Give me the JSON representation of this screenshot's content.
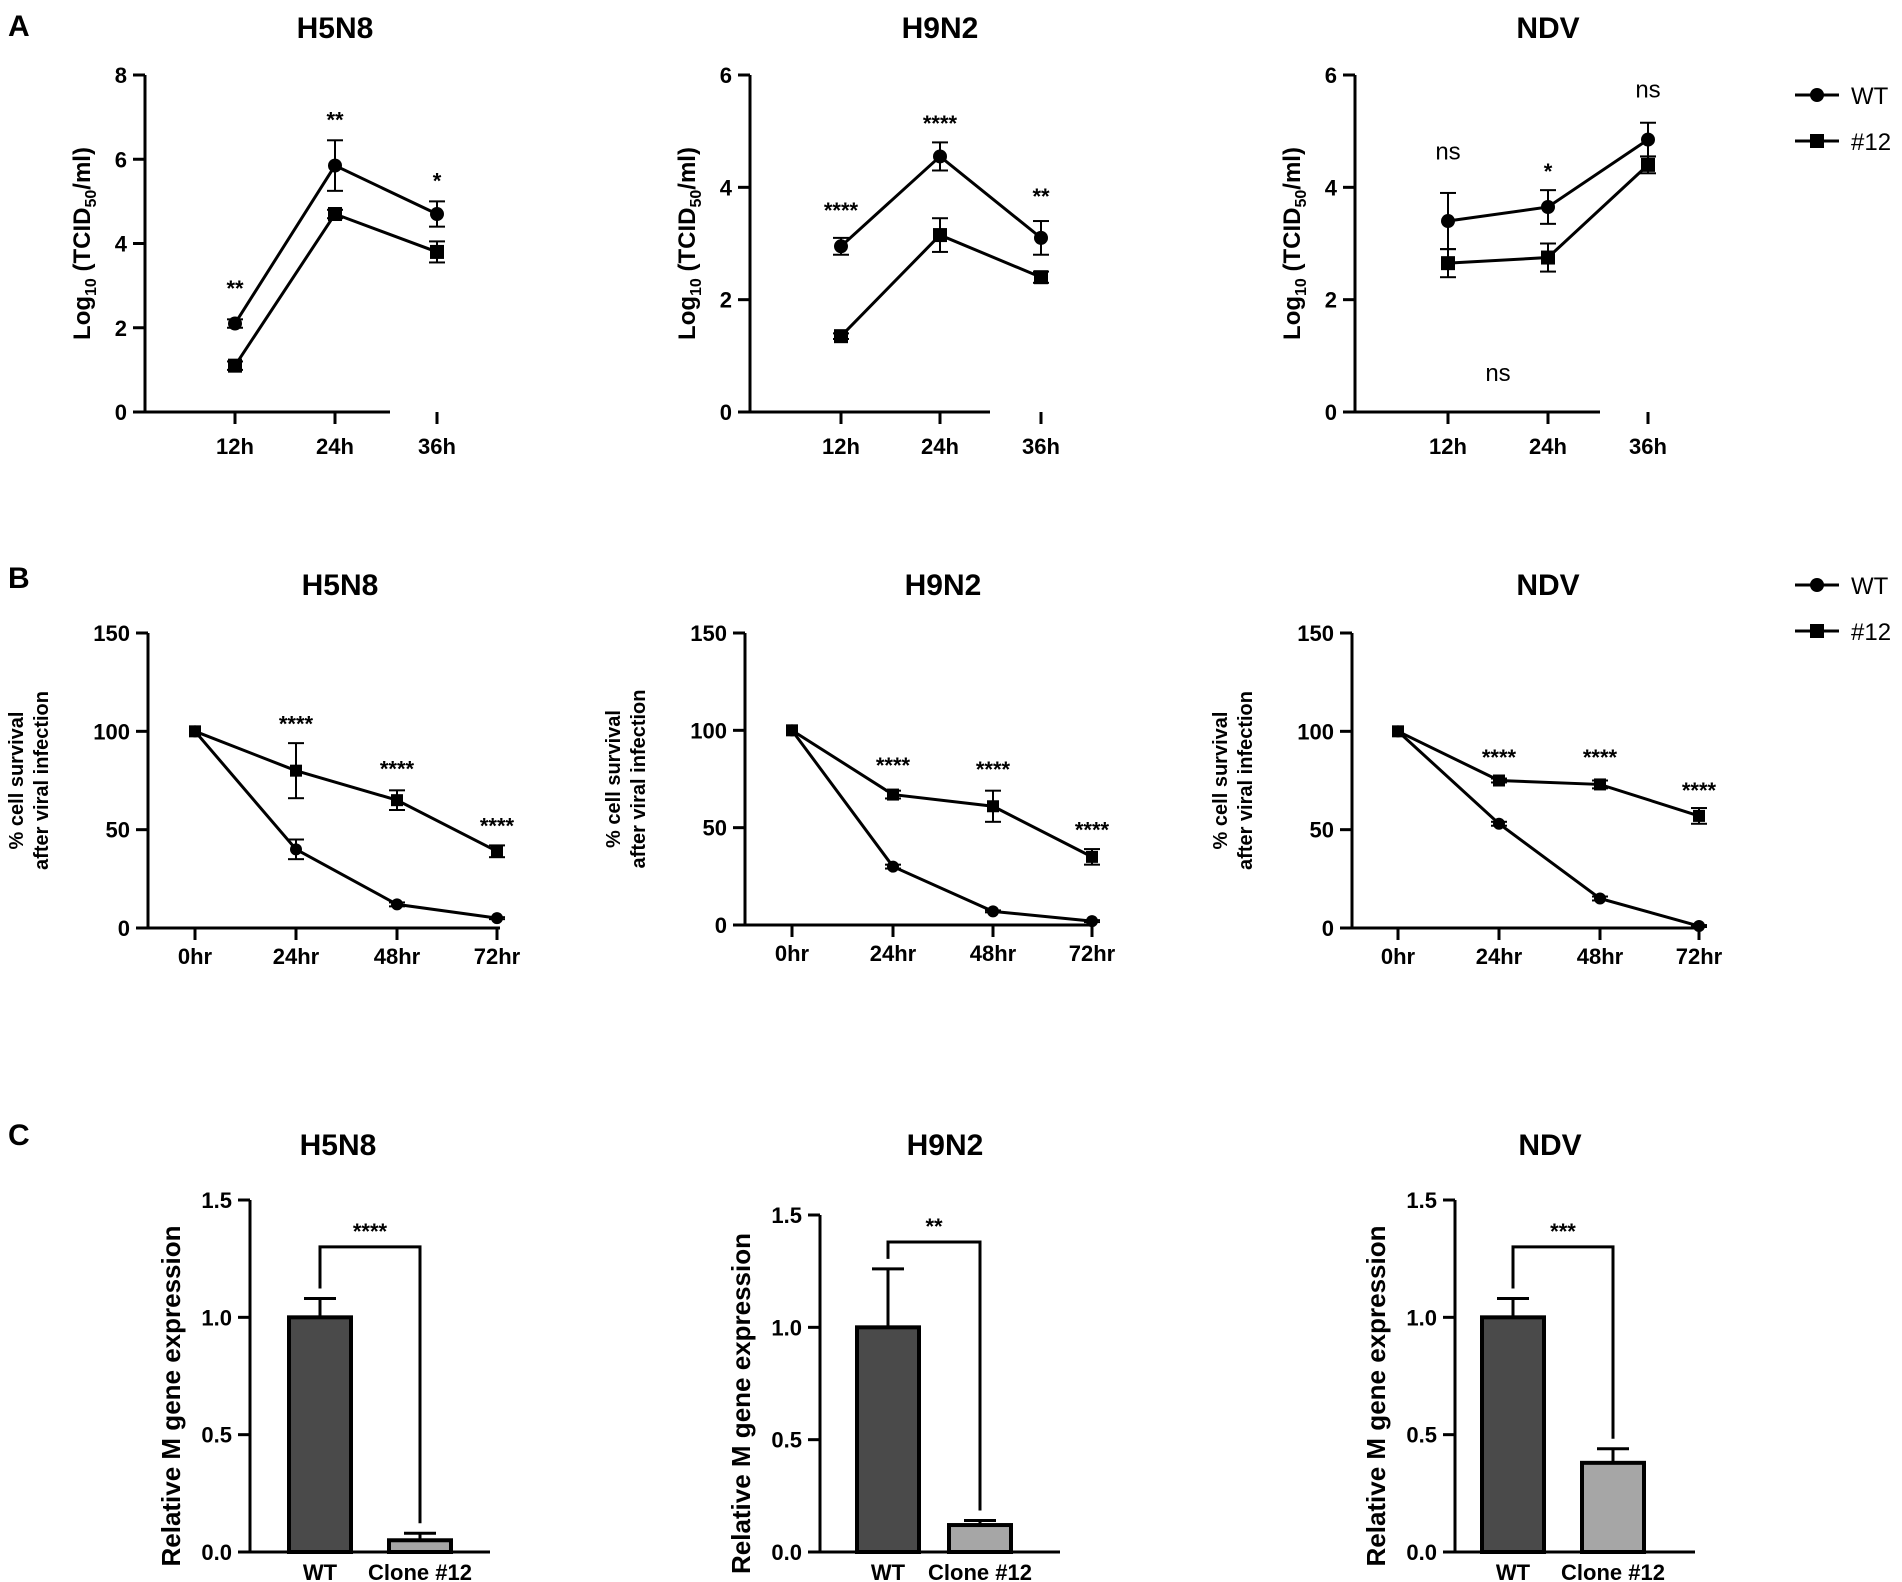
{
  "panel_letters": {
    "a": "A",
    "b": "B",
    "c": "C"
  },
  "legend": [
    {
      "name": "WT",
      "marker": "circle"
    },
    {
      "name": "#12",
      "marker": "square"
    }
  ],
  "chart_data": [
    {
      "panel": "A",
      "type": "line",
      "title": "H5N8",
      "ylabel": {
        "base": "Log",
        "sub1": "10",
        "mid": " (TCID",
        "sub2": "50",
        "end": "/ml)"
      },
      "categories": [
        "12h",
        "24h",
        "36h"
      ],
      "ylim": [
        0,
        8
      ],
      "yticks": [
        0,
        2,
        4,
        6,
        8
      ],
      "series": [
        {
          "name": "WT",
          "marker": "circle",
          "values": [
            2.1,
            5.85,
            4.7
          ],
          "errors": [
            0.1,
            0.6,
            0.3
          ]
        },
        {
          "name": "#12",
          "marker": "square",
          "values": [
            1.1,
            4.7,
            3.8
          ],
          "errors": [
            0.1,
            0.1,
            0.25
          ]
        }
      ],
      "annotations": [
        {
          "category": "12h",
          "text": "**",
          "y": 2.75,
          "style": "sig"
        },
        {
          "category": "24h",
          "text": "**",
          "y": 6.75,
          "style": "sig"
        },
        {
          "category": "36h",
          "text": "*",
          "y": 5.3,
          "style": "sig"
        }
      ]
    },
    {
      "panel": "A",
      "type": "line",
      "title": "H9N2",
      "ylabel": {
        "base": "Log",
        "sub1": "10",
        "mid": " (TCID",
        "sub2": "50",
        "end": "/ml)"
      },
      "categories": [
        "12h",
        "24h",
        "36h"
      ],
      "ylim": [
        0,
        6
      ],
      "yticks": [
        0,
        2,
        4,
        6
      ],
      "series": [
        {
          "name": "WT",
          "marker": "circle",
          "values": [
            2.95,
            4.55,
            3.1
          ],
          "errors": [
            0.15,
            0.25,
            0.3
          ]
        },
        {
          "name": "#12",
          "marker": "square",
          "values": [
            1.35,
            3.15,
            2.4
          ],
          "errors": [
            0.05,
            0.3,
            0.1
          ]
        }
      ],
      "annotations": [
        {
          "category": "12h",
          "text": "****",
          "y": 3.45,
          "style": "sig"
        },
        {
          "category": "24h",
          "text": "****",
          "y": 5.0,
          "style": "sig"
        },
        {
          "category": "36h",
          "text": "**",
          "y": 3.7,
          "style": "sig"
        }
      ]
    },
    {
      "panel": "A",
      "type": "line",
      "title": "NDV",
      "ylabel": {
        "base": "Log",
        "sub1": "10",
        "mid": " (TCID",
        "sub2": "50",
        "end": "/ml)"
      },
      "categories": [
        "12h",
        "24h",
        "36h"
      ],
      "ylim": [
        0,
        6
      ],
      "yticks": [
        0,
        2,
        4,
        6
      ],
      "series": [
        {
          "name": "WT",
          "marker": "circle",
          "values": [
            3.4,
            3.65,
            4.85
          ],
          "errors": [
            0.5,
            0.3,
            0.3
          ]
        },
        {
          "name": "#12",
          "marker": "square",
          "values": [
            2.65,
            2.75,
            4.4
          ],
          "errors": [
            0.25,
            0.25,
            0.15
          ]
        }
      ],
      "annotations": [
        {
          "category": "12h",
          "text": "ns",
          "y": 4.5,
          "style": "ns"
        },
        {
          "category": "24h",
          "text": "*",
          "y": 4.15,
          "style": "sig"
        },
        {
          "category": "36h",
          "text": "ns",
          "y": 5.6,
          "style": "ns"
        },
        {
          "category": "24h",
          "text": "ns",
          "y": 0.55,
          "style": "ns",
          "dx": -0.5
        }
      ]
    },
    {
      "panel": "B",
      "type": "line",
      "title": "H5N8",
      "ylabel": {
        "line1": "% cell survival",
        "line2": "after viral infection"
      },
      "categories": [
        "0hr",
        "24hr",
        "48hr",
        "72hr"
      ],
      "ylim": [
        0,
        150
      ],
      "yticks": [
        0,
        50,
        100,
        150
      ],
      "series": [
        {
          "name": "WT",
          "marker": "circle",
          "values": [
            100,
            40,
            12,
            5
          ],
          "errors": [
            0,
            5,
            1,
            0.5
          ]
        },
        {
          "name": "#12",
          "marker": "square",
          "values": [
            100,
            80,
            65,
            39
          ],
          "errors": [
            0,
            14,
            5,
            3
          ]
        }
      ],
      "annotations": [
        {
          "category": "24hr",
          "text": "****",
          "y": 100,
          "style": "sig"
        },
        {
          "category": "48hr",
          "text": "****",
          "y": 77,
          "style": "sig"
        },
        {
          "category": "72hr",
          "text": "****",
          "y": 48,
          "style": "sig"
        }
      ]
    },
    {
      "panel": "B",
      "type": "line",
      "title": "H9N2",
      "ylabel": {
        "line1": "% cell survival",
        "line2": "after viral infection"
      },
      "categories": [
        "0hr",
        "24hr",
        "48hr",
        "72hr"
      ],
      "ylim": [
        0,
        150
      ],
      "yticks": [
        0,
        50,
        100,
        150
      ],
      "series": [
        {
          "name": "WT",
          "marker": "circle",
          "values": [
            100,
            30,
            7,
            2
          ],
          "errors": [
            0,
            1,
            0.5,
            0.5
          ]
        },
        {
          "name": "#12",
          "marker": "square",
          "values": [
            100,
            67,
            61,
            35
          ],
          "errors": [
            0,
            2,
            8,
            4
          ]
        }
      ],
      "annotations": [
        {
          "category": "24hr",
          "text": "****",
          "y": 78,
          "style": "sig"
        },
        {
          "category": "48hr",
          "text": "****",
          "y": 76,
          "style": "sig"
        },
        {
          "category": "72hr",
          "text": "****",
          "y": 45,
          "style": "sig"
        }
      ]
    },
    {
      "panel": "B",
      "type": "line",
      "title": "NDV",
      "ylabel": {
        "line1": "% cell survival",
        "line2": "after viral infection"
      },
      "categories": [
        "0hr",
        "24hr",
        "48hr",
        "72hr"
      ],
      "ylim": [
        0,
        150
      ],
      "yticks": [
        0,
        50,
        100,
        150
      ],
      "series": [
        {
          "name": "WT",
          "marker": "circle",
          "values": [
            100,
            53,
            15,
            1
          ],
          "errors": [
            0,
            1,
            1,
            0.5
          ]
        },
        {
          "name": "#12",
          "marker": "square",
          "values": [
            100,
            75,
            73,
            57
          ],
          "errors": [
            0,
            1,
            2,
            4
          ]
        }
      ],
      "annotations": [
        {
          "category": "24hr",
          "text": "****",
          "y": 83,
          "style": "sig"
        },
        {
          "category": "48hr",
          "text": "****",
          "y": 83,
          "style": "sig"
        },
        {
          "category": "72hr",
          "text": "****",
          "y": 66,
          "style": "sig"
        }
      ]
    },
    {
      "panel": "C",
      "type": "bar",
      "title": "H5N8",
      "ylabel": "Relative M gene expression",
      "categories": [
        "WT",
        "Clone #12"
      ],
      "values": [
        1.0,
        0.05
      ],
      "errors": [
        0.08,
        0.03
      ],
      "colors": [
        "#4a4a4a",
        "#a6a6a6"
      ],
      "ylim": [
        0,
        1.5
      ],
      "yticks": [
        "0.0",
        "0.5",
        "1.0",
        "1.5"
      ],
      "significance": "****",
      "bracket_y": 1.3
    },
    {
      "panel": "C",
      "type": "bar",
      "title": "H9N2",
      "ylabel": "Relative M gene expression",
      "categories": [
        "WT",
        "Clone #12"
      ],
      "values": [
        1.0,
        0.12
      ],
      "errors": [
        0.26,
        0.02
      ],
      "colors": [
        "#4a4a4a",
        "#a6a6a6"
      ],
      "ylim": [
        0,
        1.5
      ],
      "yticks": [
        "0.0",
        "0.5",
        "1.0",
        "1.5"
      ],
      "significance": "**",
      "bracket_y": 1.38
    },
    {
      "panel": "C",
      "type": "bar",
      "title": "NDV",
      "ylabel": "Relative M gene expression",
      "categories": [
        "WT",
        "Clone #12"
      ],
      "values": [
        1.0,
        0.38
      ],
      "errors": [
        0.08,
        0.06
      ],
      "colors": [
        "#4a4a4a",
        "#a6a6a6"
      ],
      "ylim": [
        0,
        1.5
      ],
      "yticks": [
        "0.0",
        "0.5",
        "1.0",
        "1.5"
      ],
      "significance": "***",
      "bracket_y": 1.3
    }
  ]
}
